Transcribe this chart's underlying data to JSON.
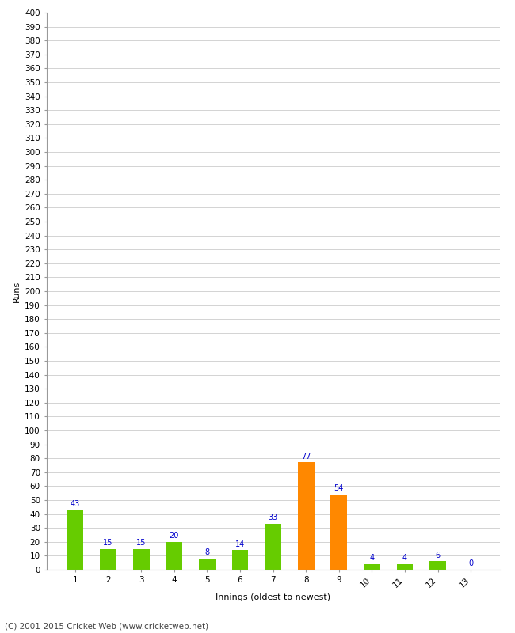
{
  "categories": [
    "1",
    "2",
    "3",
    "4",
    "5",
    "6",
    "7",
    "8",
    "9",
    "10",
    "11",
    "12",
    "13"
  ],
  "values": [
    43,
    15,
    15,
    20,
    8,
    14,
    33,
    77,
    54,
    4,
    4,
    6,
    0
  ],
  "bar_colors": [
    "#66cc00",
    "#66cc00",
    "#66cc00",
    "#66cc00",
    "#66cc00",
    "#66cc00",
    "#66cc00",
    "#ff8800",
    "#ff8800",
    "#66cc00",
    "#66cc00",
    "#66cc00",
    "#66cc00"
  ],
  "xlabel": "Innings (oldest to newest)",
  "ylabel": "Runs",
  "ylim": [
    0,
    400
  ],
  "ytick_step": 10,
  "label_color": "#0000cc",
  "label_fontsize": 7,
  "axis_label_fontsize": 8,
  "tick_fontsize": 7.5,
  "background_color": "#ffffff",
  "grid_color": "#cccccc",
  "footer": "(C) 2001-2015 Cricket Web (www.cricketweb.net)",
  "footer_fontsize": 7.5
}
